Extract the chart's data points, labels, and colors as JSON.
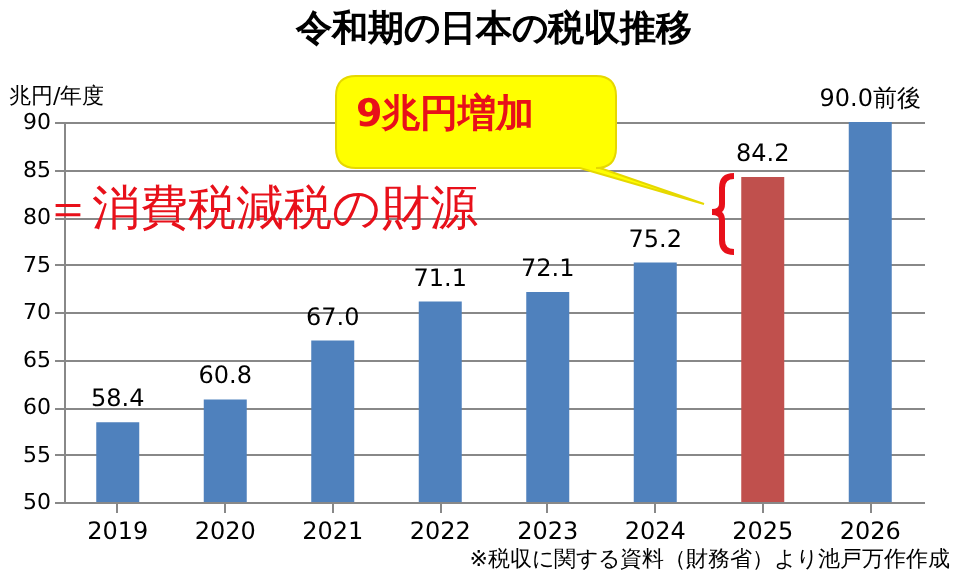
{
  "chart_data": {
    "type": "bar",
    "title": "令和期の日本の税収推移",
    "ylabel": "兆円/年度",
    "categories": [
      "2019",
      "2020",
      "2021",
      "2022",
      "2023",
      "2024",
      "2025",
      "2026"
    ],
    "values": [
      58.4,
      60.8,
      67.0,
      71.1,
      72.1,
      75.2,
      84.2,
      90.0
    ],
    "colors": [
      "#4f81bd",
      "#4f81bd",
      "#4f81bd",
      "#4f81bd",
      "#4f81bd",
      "#4f81bd",
      "#c0504d",
      "#4f81bd"
    ],
    "value_labels": [
      "58.4",
      "60.8",
      "67.0",
      "71.1",
      "72.1",
      "75.2",
      "84.2",
      "90.0前後"
    ],
    "ylim": [
      50,
      90
    ],
    "yticks": [
      50,
      55,
      60,
      65,
      70,
      75,
      80,
      85,
      90
    ],
    "grid": "y",
    "annotations": [
      "9兆円増加",
      "＝消費税減税の財源",
      "※税収に関する資料（財務省）より池戸万作作成"
    ]
  }
}
